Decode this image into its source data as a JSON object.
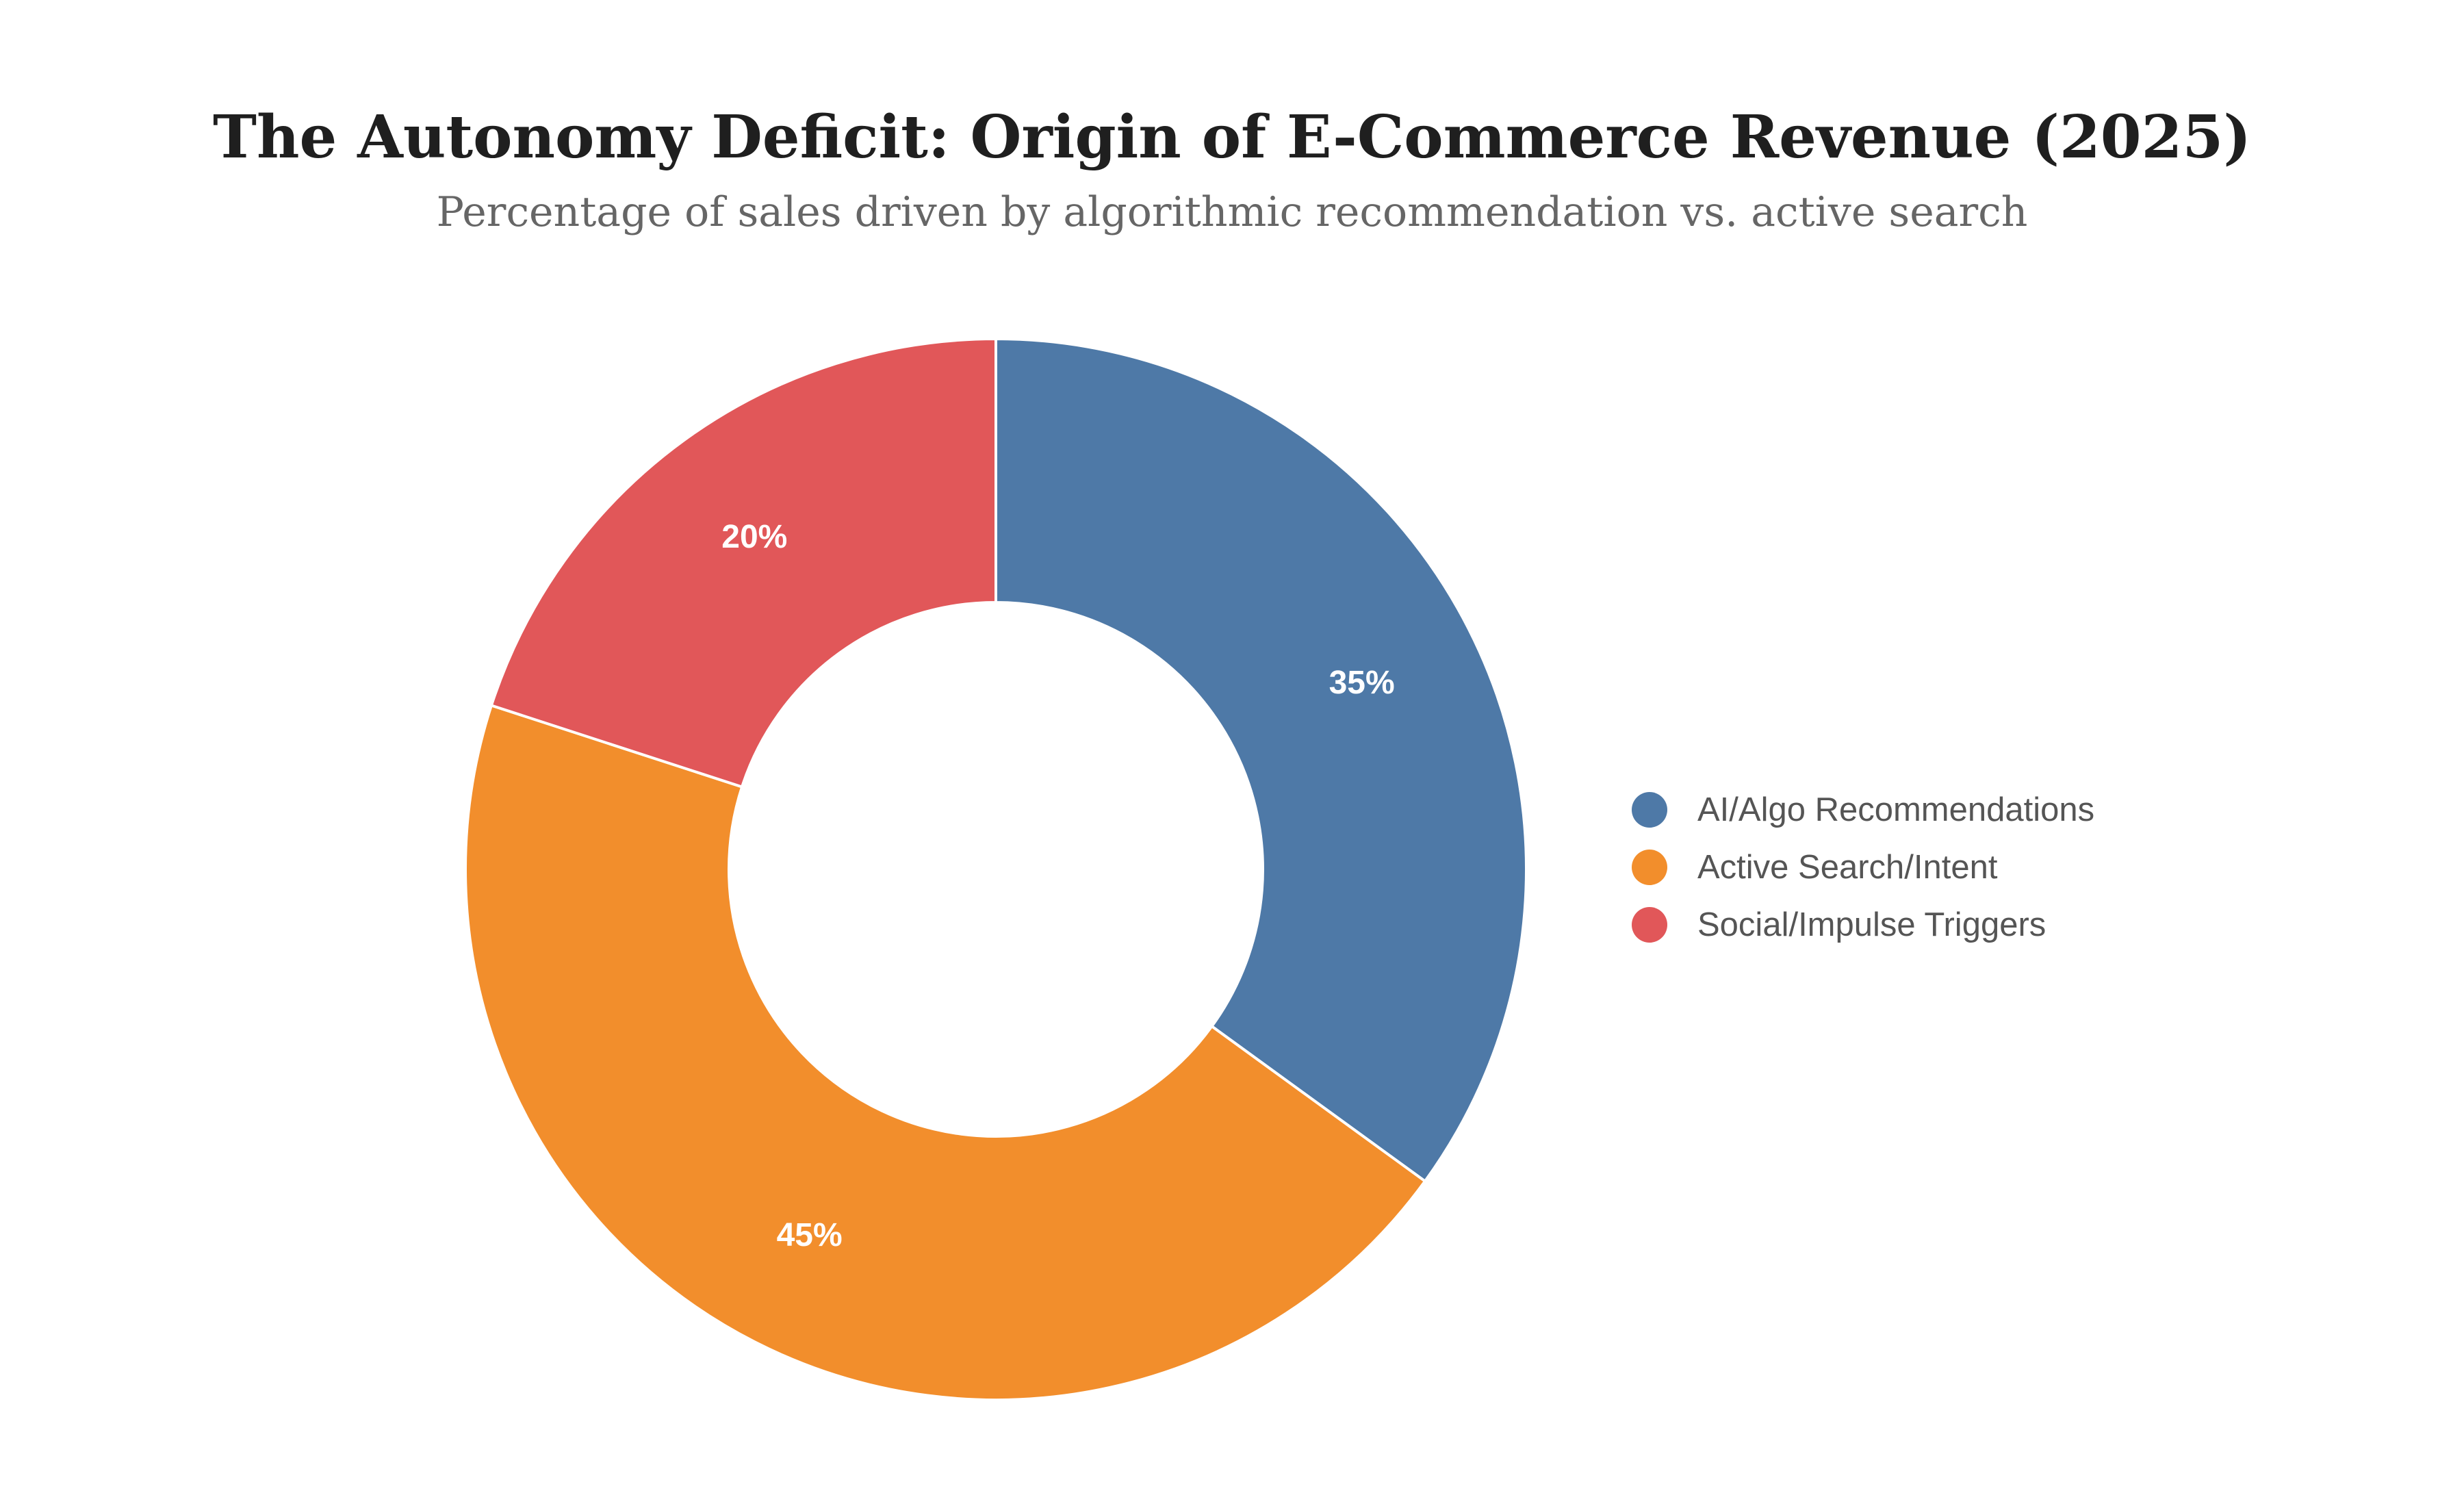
{
  "chart_data": {
    "type": "pie",
    "donut": true,
    "title": "The Autonomy Deficit: Origin of E-Commerce Revenue (2025)",
    "subtitle": "Percentage of sales driven by algorithmic recommendation vs. active search",
    "unit": "%",
    "legend_position": "right",
    "slices": [
      {
        "name": "AI/Algo Recommendations",
        "value": 35,
        "label": "35%",
        "color": "#4e79a7"
      },
      {
        "name": "Active Search/Intent",
        "value": 45,
        "label": "45%",
        "color": "#f28e2c"
      },
      {
        "name": "Social/Impulse Triggers",
        "value": 20,
        "label": "20%",
        "color": "#e15759"
      }
    ]
  }
}
